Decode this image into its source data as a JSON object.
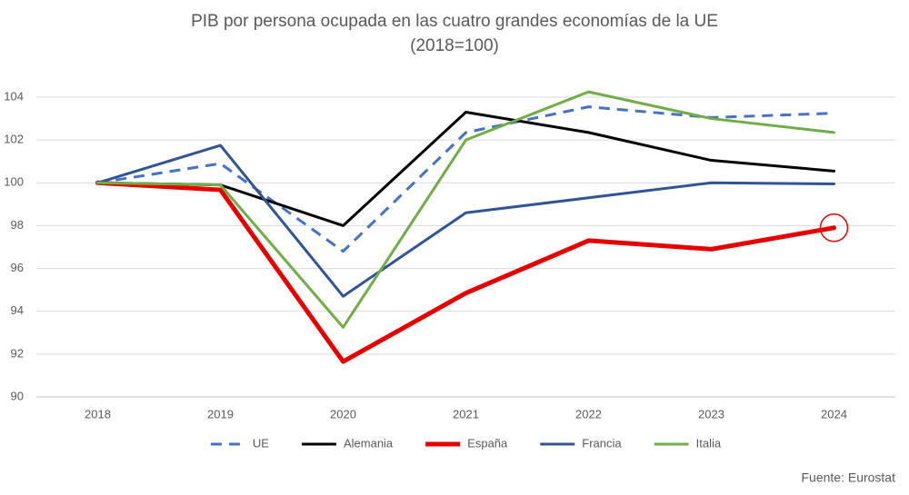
{
  "chart_data": {
    "type": "line",
    "title": "PIB por persona ocupada en las cuatro grandes economías de la UE",
    "subtitle": "(2018=100)",
    "source": "Fuente: Eurostat",
    "categories": [
      "2018",
      "2019",
      "2020",
      "2021",
      "2022",
      "2023",
      "2024"
    ],
    "series": [
      {
        "name": "UE",
        "color": "#4472c4",
        "dashed": true,
        "linewidth": 3,
        "values": [
          100,
          100.9,
          96.8,
          102.35,
          103.55,
          103.05,
          103.25
        ]
      },
      {
        "name": "Alemania",
        "color": "#000000",
        "dashed": false,
        "linewidth": 3,
        "values": [
          100,
          99.9,
          98.0,
          103.3,
          102.35,
          101.05,
          100.55
        ]
      },
      {
        "name": "España",
        "color": "#e60000",
        "dashed": false,
        "linewidth": 5,
        "values": [
          100,
          99.67,
          91.65,
          94.85,
          97.3,
          96.9,
          97.9
        ]
      },
      {
        "name": "Francia",
        "color": "#2f5597",
        "dashed": false,
        "linewidth": 3,
        "values": [
          100,
          101.75,
          94.7,
          98.6,
          99.3,
          100.0,
          99.95
        ]
      },
      {
        "name": "Italia",
        "color": "#70ad47",
        "dashed": false,
        "linewidth": 3,
        "values": [
          100,
          99.9,
          93.25,
          102.0,
          104.25,
          103.0,
          102.35
        ]
      }
    ],
    "ylim": [
      90,
      104
    ],
    "yticks": [
      90,
      92,
      94,
      96,
      98,
      100,
      102,
      104
    ],
    "grid": true,
    "legend": "bottom"
  }
}
